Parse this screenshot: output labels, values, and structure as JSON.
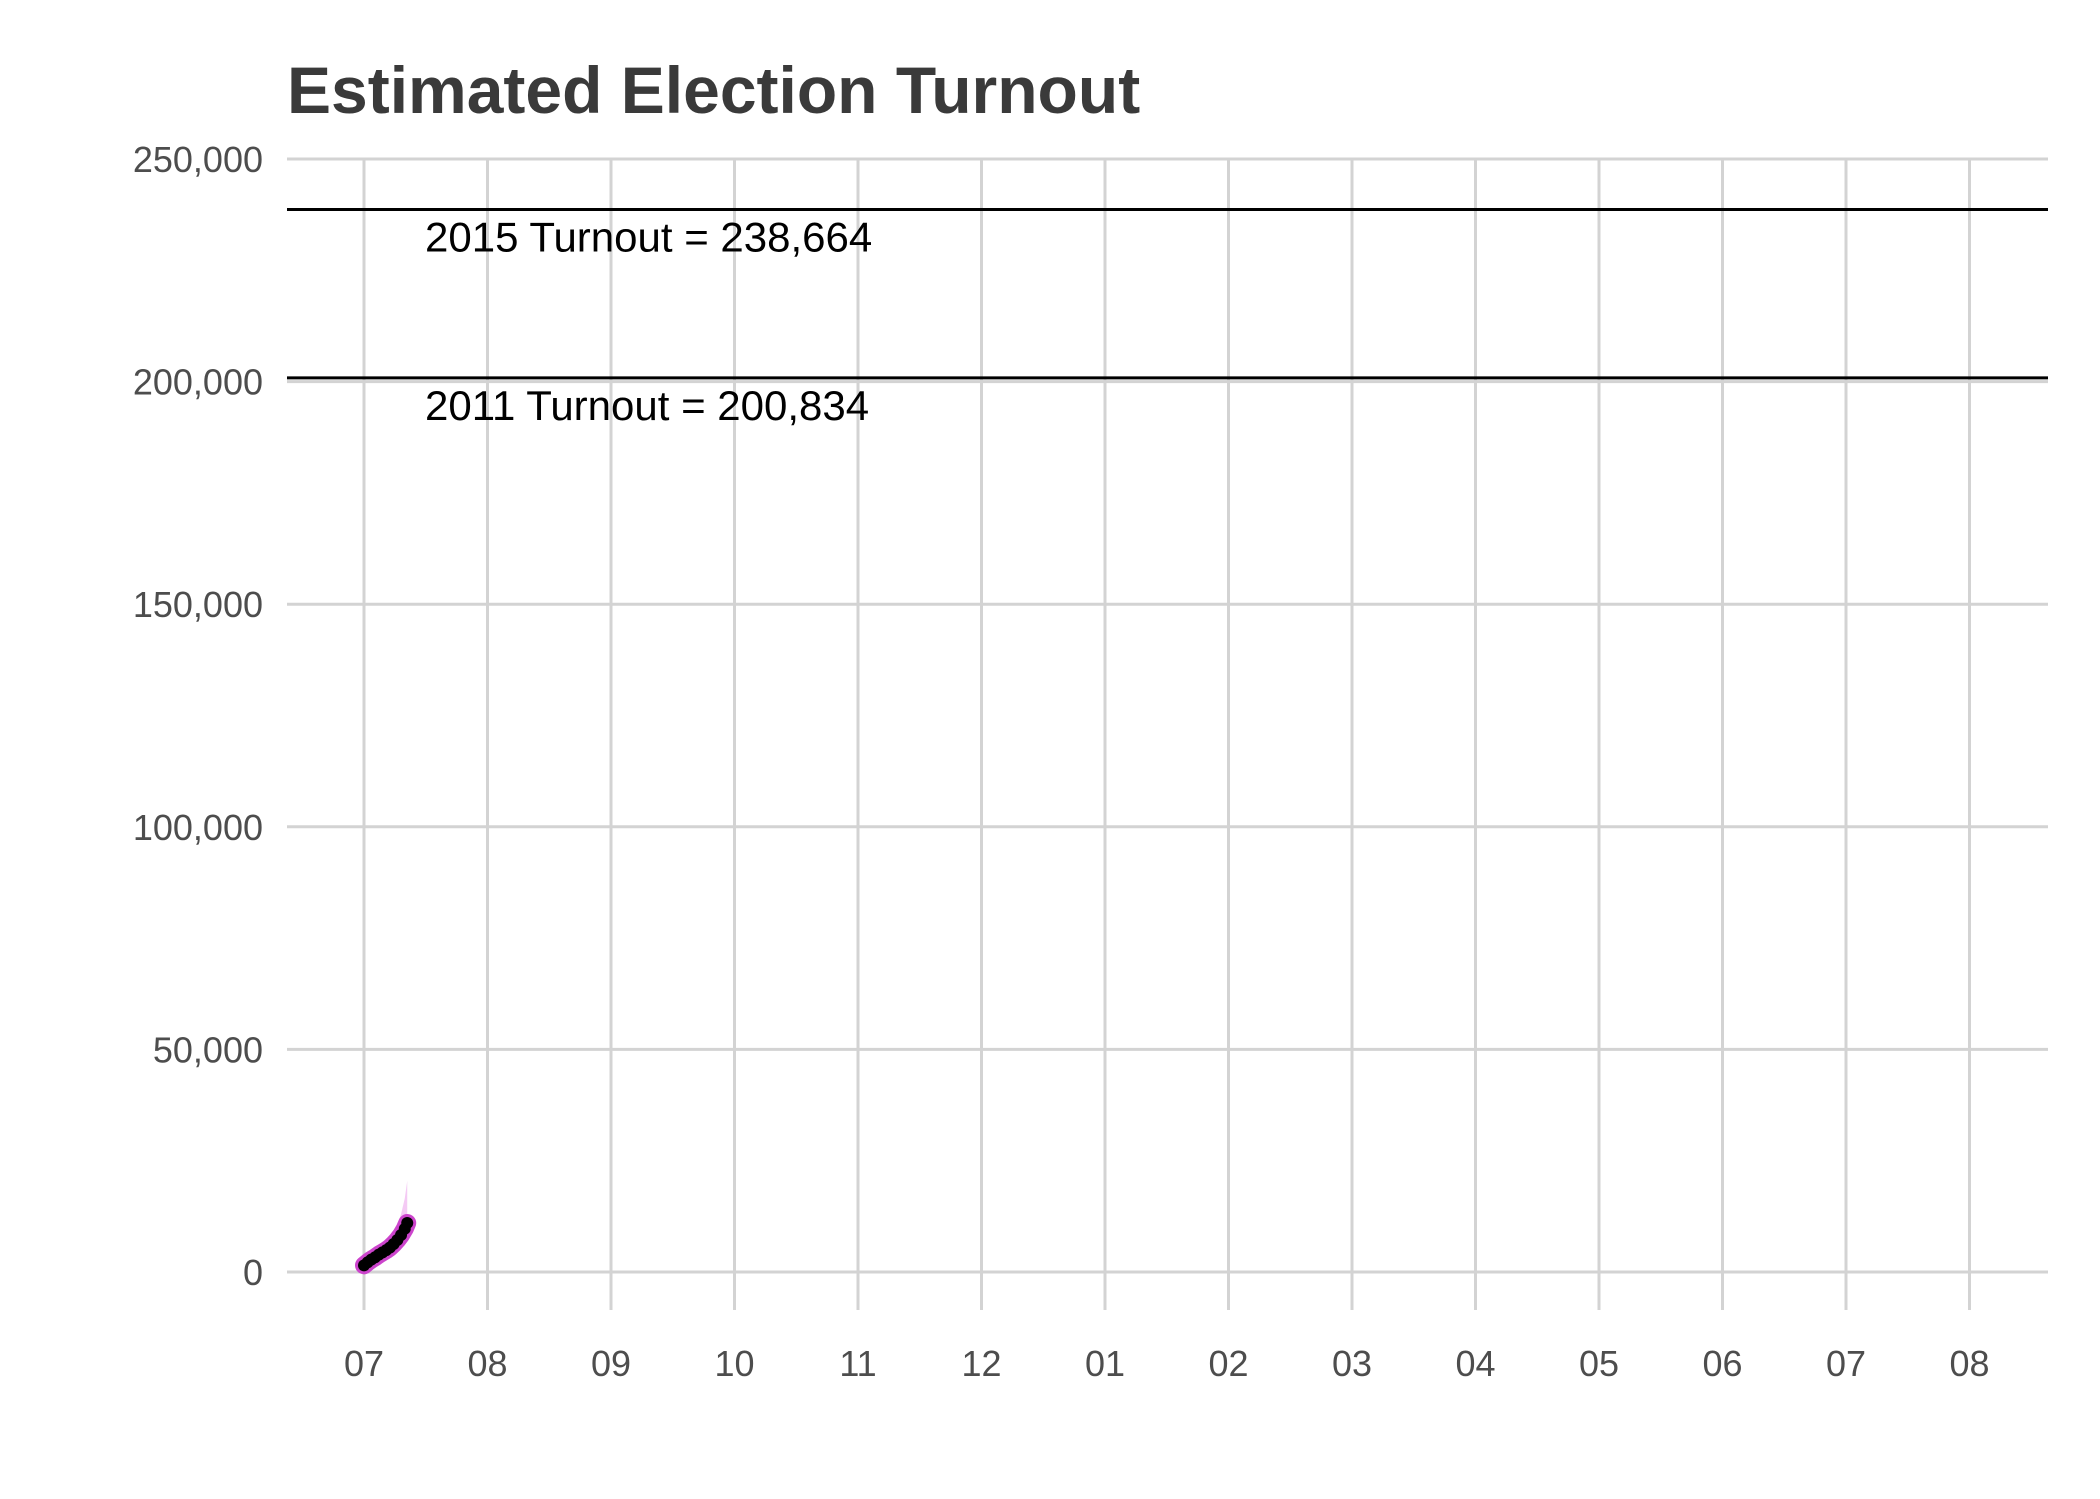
{
  "chart_data": {
    "type": "line",
    "title": "Estimated Election Turnout",
    "xlabel": "",
    "ylabel": "",
    "ylim": [
      -10000,
      250000
    ],
    "grid": true,
    "x_tick_labels": [
      "07",
      "08",
      "09",
      "10",
      "11",
      "12",
      "01",
      "02",
      "03",
      "04",
      "05",
      "06",
      "07",
      "08"
    ],
    "y_ticks": [
      0,
      50000,
      100000,
      150000,
      200000,
      250000
    ],
    "y_tick_labels": [
      "0",
      "50,000",
      "100,000",
      "150,000",
      "200,000",
      "250,000"
    ],
    "reference_lines": [
      {
        "label": "2015 Turnout = 238,664",
        "value": 238664
      },
      {
        "label": "2011 Turnout = 200,834",
        "value": 200834
      }
    ],
    "series": [
      {
        "x": [
          0.0,
          0.03,
          0.06,
          0.09,
          0.12,
          0.15,
          0.18,
          0.21,
          0.24,
          0.27,
          0.3,
          0.33,
          0.35
        ],
        "values": [
          1500,
          2200,
          2800,
          3300,
          3900,
          4400,
          4900,
          5500,
          6300,
          7200,
          8300,
          9700,
          11000
        ],
        "band_upper": [
          1700,
          2500,
          3200,
          3900,
          4700,
          5500,
          6400,
          7500,
          8800,
          10500,
          13000,
          16500,
          20500
        ],
        "band_lower": [
          1300,
          1900,
          2400,
          2800,
          3200,
          3600,
          4000,
          4400,
          4900,
          5500,
          6200,
          7000,
          7800
        ]
      }
    ],
    "colors": {
      "line": "#cc44cc",
      "band": "#f0b3f0",
      "points": "#000000"
    }
  }
}
